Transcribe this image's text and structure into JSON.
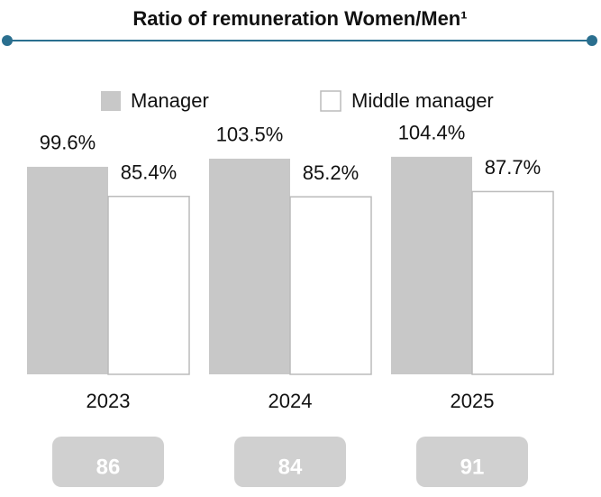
{
  "chart_data": {
    "type": "bar",
    "title": "Ratio of remuneration Women/Men¹",
    "categories": [
      "2023",
      "2024",
      "2025"
    ],
    "series": [
      {
        "name": "Manager",
        "color": "#c8c8c8",
        "values": [
          99.6,
          103.5,
          104.4
        ],
        "value_labels": [
          "99.6%",
          "103.5%",
          "104.4%"
        ]
      },
      {
        "name": "Middle manager",
        "color": "#ffffff",
        "values": [
          85.4,
          85.2,
          87.7
        ],
        "value_labels": [
          "85.4%",
          "85.2%",
          "87.7%"
        ]
      }
    ],
    "index_values": [
      86,
      84,
      91
    ]
  }
}
